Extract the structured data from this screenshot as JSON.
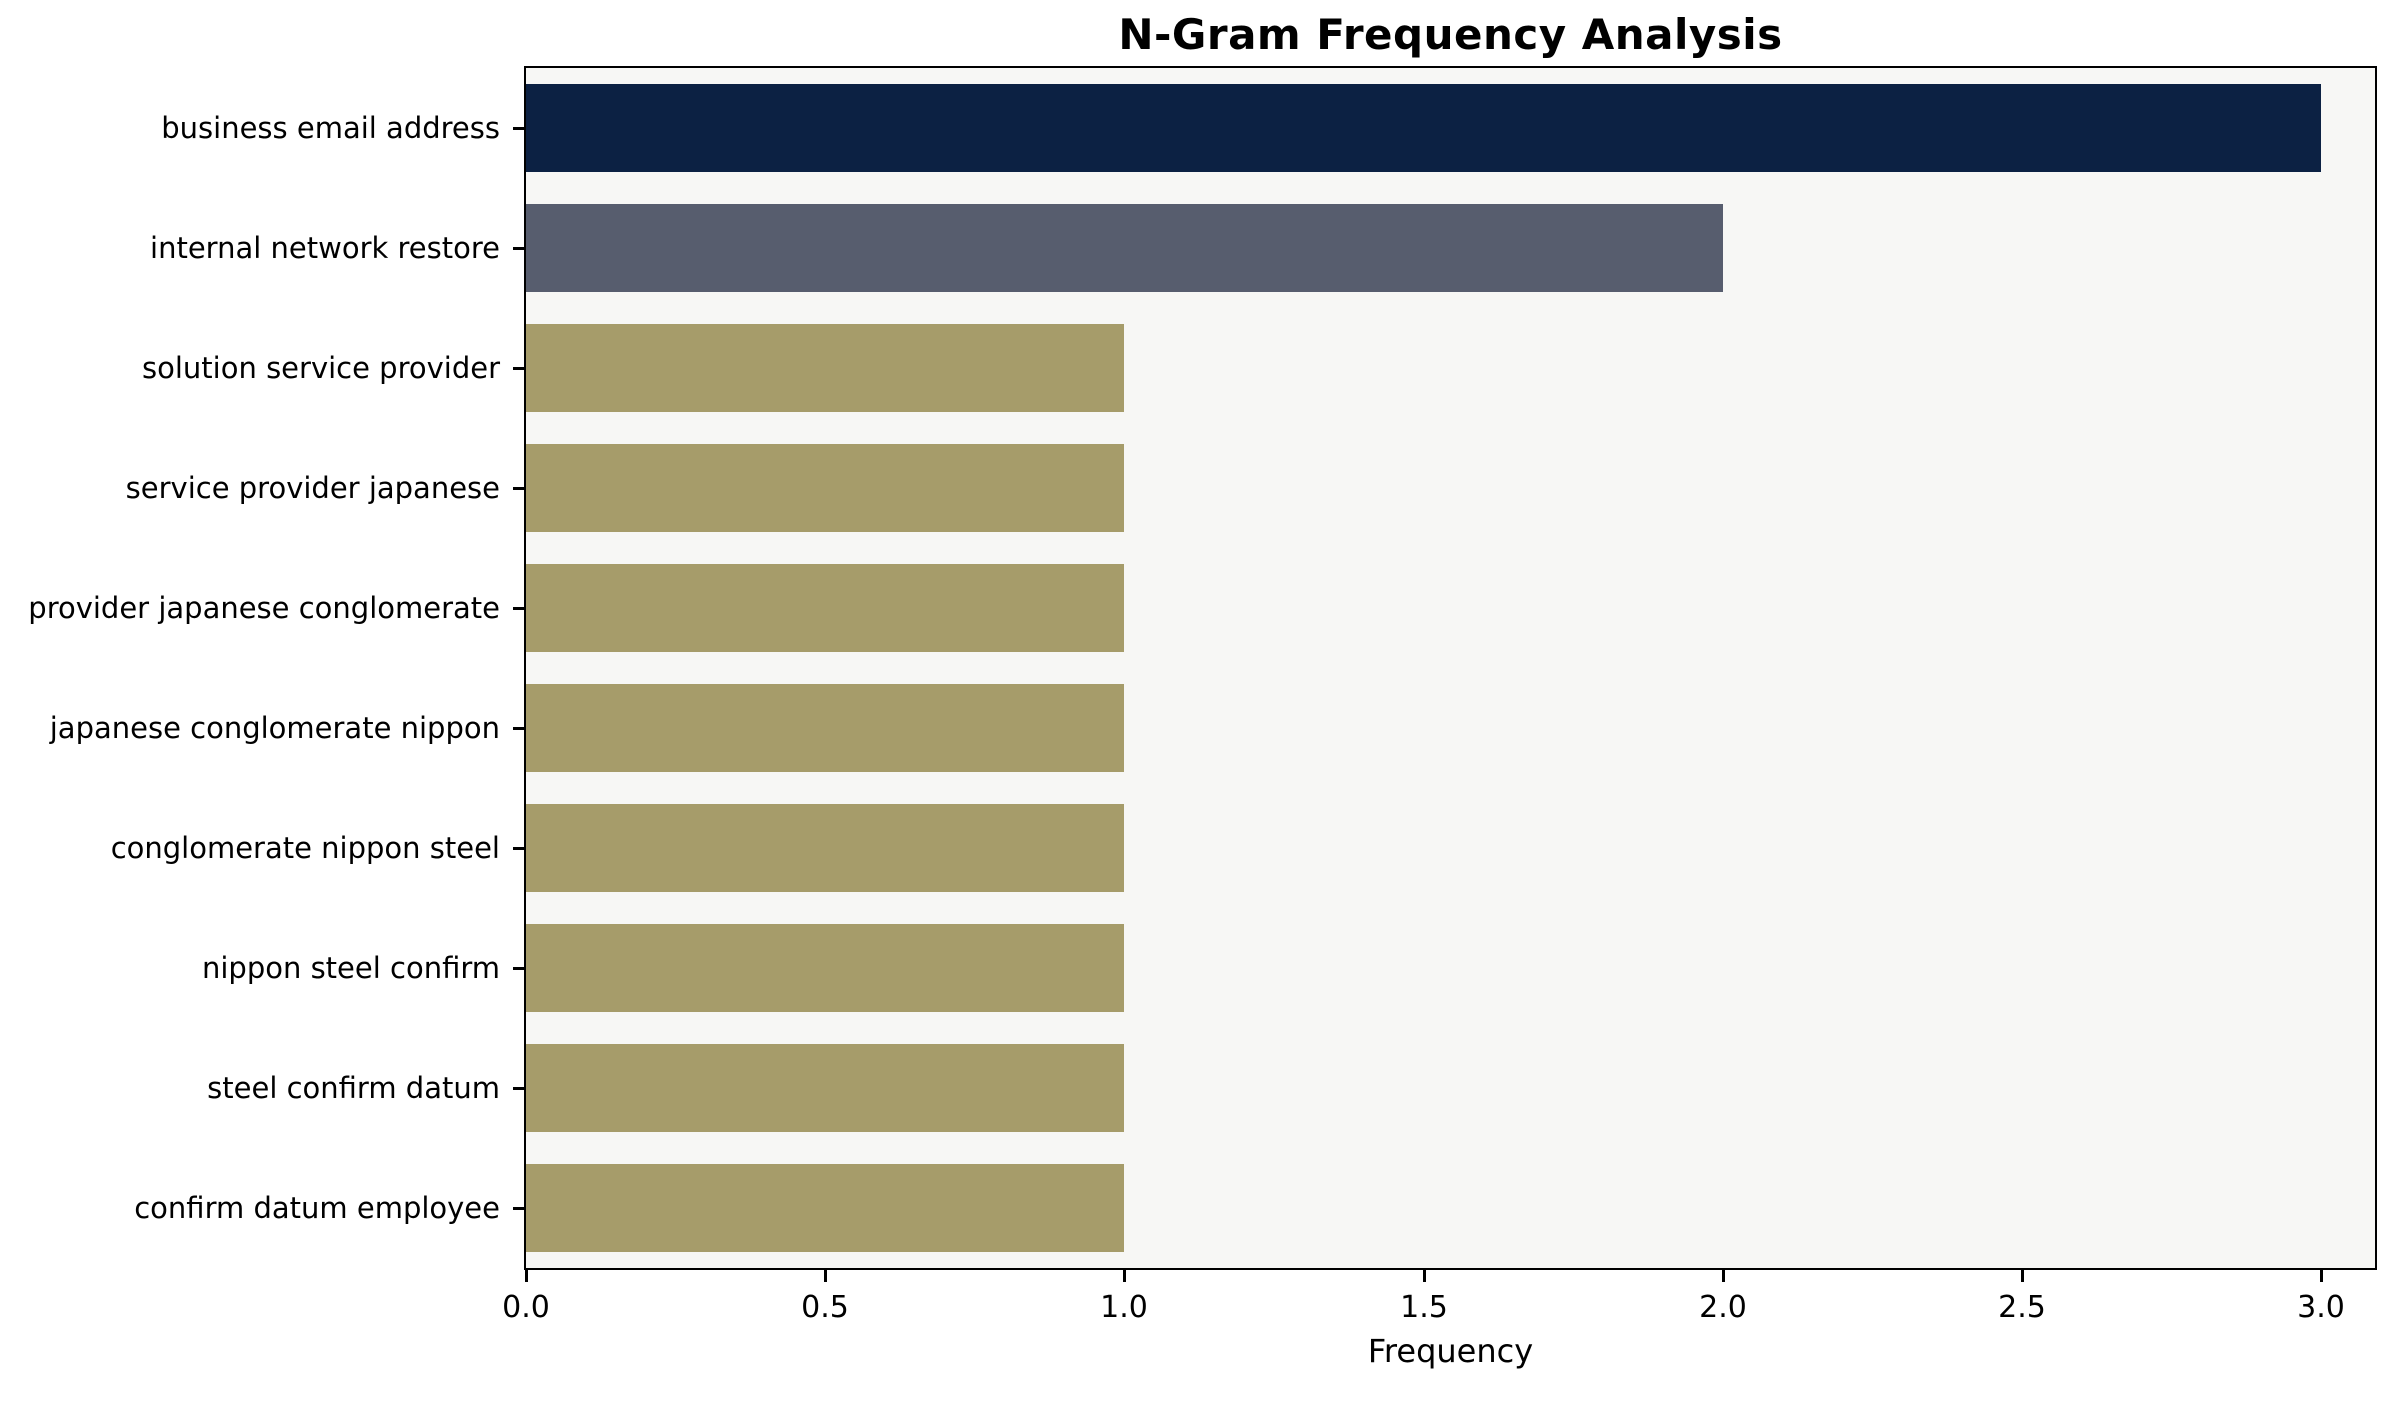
{
  "chart_data": {
    "type": "bar",
    "orientation": "horizontal",
    "title": "N-Gram Frequency Analysis",
    "xlabel": "Frequency",
    "ylabel": "",
    "categories": [
      "business email address",
      "internal network restore",
      "solution service provider",
      "service provider japanese",
      "provider japanese conglomerate",
      "japanese conglomerate nippon",
      "conglomerate nippon steel",
      "nippon steel confirm",
      "steel confirm datum",
      "confirm datum employee"
    ],
    "values": [
      3,
      2,
      1,
      1,
      1,
      1,
      1,
      1,
      1,
      1
    ],
    "bar_colors": [
      "#0c2143",
      "#575d6e",
      "#a69c6a",
      "#a69c6a",
      "#a69c6a",
      "#a69c6a",
      "#a69c6a",
      "#a69c6a",
      "#a69c6a",
      "#a69c6a"
    ],
    "xlim": [
      0,
      3.09
    ],
    "xticks": [
      0,
      0.5,
      1,
      1.5,
      2,
      2.5,
      3
    ],
    "grid": false,
    "legend": "none",
    "plot_background": "#f7f7f5",
    "figure_background": "#ffffff"
  }
}
